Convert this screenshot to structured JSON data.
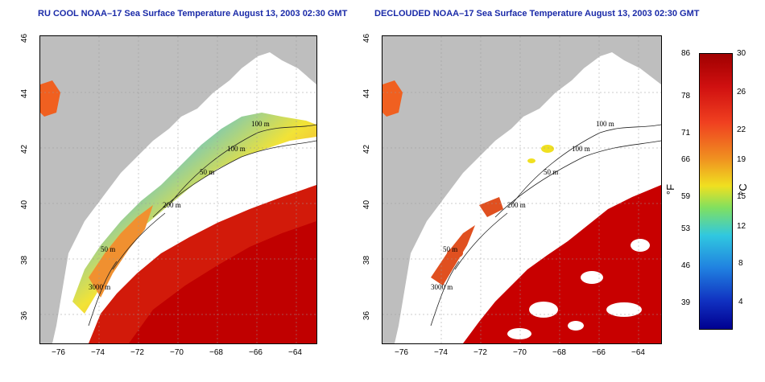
{
  "left_panel": {
    "title": "RU COOL NOAA–17 Sea Surface Temperature August 13, 2003 02:30 GMT",
    "contours": [
      "100 m",
      "100 m",
      "50 m",
      "200 m",
      "50 m",
      "3000 m"
    ]
  },
  "right_panel": {
    "title": "DECLOUDED NOAA–17 Sea Surface Temperature August 13, 2003 02:30 GMT",
    "contours": [
      "100 m",
      "100 m",
      "50 m",
      "200 m",
      "50 m",
      "3000 m"
    ]
  },
  "axes": {
    "x_ticks": [
      "−76",
      "−74",
      "−72",
      "−70",
      "−68",
      "−66",
      "−64"
    ],
    "y_ticks": [
      "46",
      "44",
      "42",
      "40",
      "38",
      "36"
    ]
  },
  "colorbar": {
    "f_ticks": [
      "86",
      "78",
      "71",
      "66",
      "59",
      "53",
      "46",
      "39"
    ],
    "c_ticks": [
      "30",
      "26",
      "22",
      "19",
      "15",
      "12",
      "8",
      "4"
    ],
    "f_unit": "°F",
    "c_unit": "°C"
  },
  "colors": {
    "land": "#bebebe",
    "cloud": "#ffffff",
    "title": "#1a2aa8",
    "warm": "#c80000",
    "cool": "#1e3cc8"
  }
}
